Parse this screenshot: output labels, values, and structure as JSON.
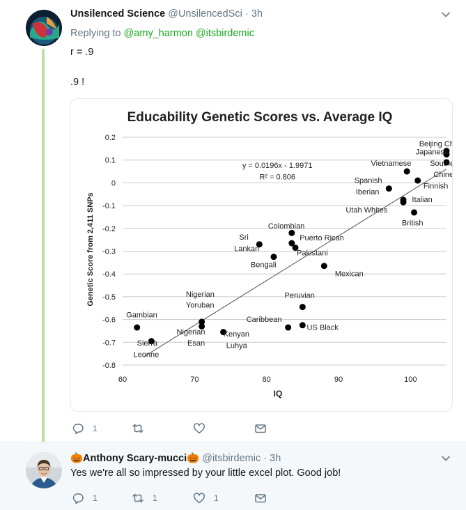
{
  "tweet1": {
    "display_name": "Unsilenced Science",
    "handle": "@UnsilencedSci",
    "separator": "·",
    "time": "3h",
    "reply_prefix": "Replying to",
    "mentions": [
      "@amy_harmon",
      "@itsbirdemic"
    ],
    "text_lines": [
      "r = .9",
      ".9 !"
    ],
    "actions": {
      "reply_count": "1",
      "retweet_count": "",
      "like_count": ""
    }
  },
  "tweet2": {
    "display_name": "🎃Anthony Scary-mucci🎃",
    "handle": "@itsbirdemic",
    "separator": "·",
    "time": "3h",
    "text": "Yes we're all so impressed by your little excel plot. Good job!",
    "actions": {
      "reply_count": "1",
      "retweet_count": "1",
      "like_count": "1"
    }
  },
  "icons": [
    "reply-icon",
    "retweet-icon",
    "like-icon",
    "dm-icon",
    "chevron-down-icon"
  ],
  "chart_data": {
    "type": "scatter",
    "title": "Educability Genetic Scores vs. Average IQ",
    "xlabel": "IQ",
    "ylabel": "Genetic Score from 2,411 SNPs",
    "xlim": [
      60,
      105
    ],
    "ylim": [
      -0.8,
      0.2
    ],
    "xticks": [
      60,
      70,
      80,
      90,
      100
    ],
    "yticks": [
      -0.8,
      -0.7,
      -0.6,
      -0.5,
      -0.4,
      -0.3,
      -0.2,
      -0.1,
      0,
      0.1,
      0.2
    ],
    "ytick_labels": [
      "-0.8",
      "-0.7",
      "-0.6",
      "-0.5",
      "-0.4",
      "-0.3",
      "-0.2",
      "-0.1",
      "0",
      "0.1",
      "0.2"
    ],
    "grid": "horizontal",
    "equation": "y = 0.0196x - 1.9971",
    "r_squared": "R² = 0.806",
    "trendline": {
      "slope": 0.0196,
      "intercept": -1.9971,
      "x_start": 63,
      "x_end": 105
    },
    "points": [
      {
        "x": 105,
        "y": 0.14
      },
      {
        "x": 105,
        "y": 0.125
      },
      {
        "x": 105,
        "y": 0.09
      },
      {
        "x": 99.5,
        "y": 0.05
      },
      {
        "x": 101,
        "y": 0.01
      },
      {
        "x": 97,
        "y": -0.025
      },
      {
        "x": 99,
        "y": -0.075
      },
      {
        "x": 99,
        "y": -0.085
      },
      {
        "x": 100.5,
        "y": -0.13
      },
      {
        "x": 83.5,
        "y": -0.22
      },
      {
        "x": 83.5,
        "y": -0.265
      },
      {
        "x": 84,
        "y": -0.285
      },
      {
        "x": 79,
        "y": -0.27
      },
      {
        "x": 81,
        "y": -0.325
      },
      {
        "x": 88,
        "y": -0.365
      },
      {
        "x": 85,
        "y": -0.545
      },
      {
        "x": 71,
        "y": -0.61
      },
      {
        "x": 71,
        "y": -0.63
      },
      {
        "x": 62,
        "y": -0.635
      },
      {
        "x": 64,
        "y": -0.695
      },
      {
        "x": 74,
        "y": -0.655
      },
      {
        "x": 83,
        "y": -0.635
      },
      {
        "x": 85,
        "y": -0.625
      }
    ],
    "annotations": [
      {
        "text": "Beijing Chinese",
        "x": 101.2,
        "y": 0.16
      },
      {
        "text": "Japanese",
        "x": 100.7,
        "y": 0.125
      },
      {
        "text": "Southern",
        "x": 102.7,
        "y": 0.075
      },
      {
        "text": "Chinese",
        "x": 103.2,
        "y": 0.025
      },
      {
        "text": "Vietnamese",
        "x": 94.5,
        "y": 0.075
      },
      {
        "text": "Finnish",
        "x": 101.8,
        "y": -0.025
      },
      {
        "text": "Spanish",
        "x": 92.2,
        "y": 0.0
      },
      {
        "text": "Iberian",
        "x": 92.4,
        "y": -0.05
      },
      {
        "text": "Italian",
        "x": 100.2,
        "y": -0.085
      },
      {
        "text": "Utah Whites",
        "x": 91,
        "y": -0.13
      },
      {
        "text": "British",
        "x": 98.8,
        "y": -0.187
      },
      {
        "text": "Colombian",
        "x": 80.2,
        "y": -0.2
      },
      {
        "text": "Sri",
        "x": 76.2,
        "y": -0.25
      },
      {
        "text": "Puerto Rican",
        "x": 84.6,
        "y": -0.252
      },
      {
        "text": "Lankan",
        "x": 75.5,
        "y": -0.3
      },
      {
        "text": "Pakistani",
        "x": 84.2,
        "y": -0.318
      },
      {
        "text": "Bengali",
        "x": 77.8,
        "y": -0.37
      },
      {
        "text": "Mexican",
        "x": 89.5,
        "y": -0.41
      },
      {
        "text": "Nigerian",
        "x": 68.8,
        "y": -0.5
      },
      {
        "text": "Peruvian",
        "x": 82.5,
        "y": -0.505
      },
      {
        "text": "Yoruban",
        "x": 68.8,
        "y": -0.547
      },
      {
        "text": "Gambian",
        "x": 60.5,
        "y": -0.59
      },
      {
        "text": "Caribbean",
        "x": 77.2,
        "y": -0.61
      },
      {
        "text": "US Black",
        "x": 85.6,
        "y": -0.645
      },
      {
        "text": "Nigerian",
        "x": 67.5,
        "y": -0.665
      },
      {
        "text": "Kenyan",
        "x": 74,
        "y": -0.675
      },
      {
        "text": "Sierra",
        "x": 62,
        "y": -0.715
      },
      {
        "text": "Esan",
        "x": 69,
        "y": -0.715
      },
      {
        "text": "Luhya",
        "x": 74.4,
        "y": -0.725
      },
      {
        "text": "Leonne",
        "x": 61.5,
        "y": -0.765
      }
    ]
  }
}
